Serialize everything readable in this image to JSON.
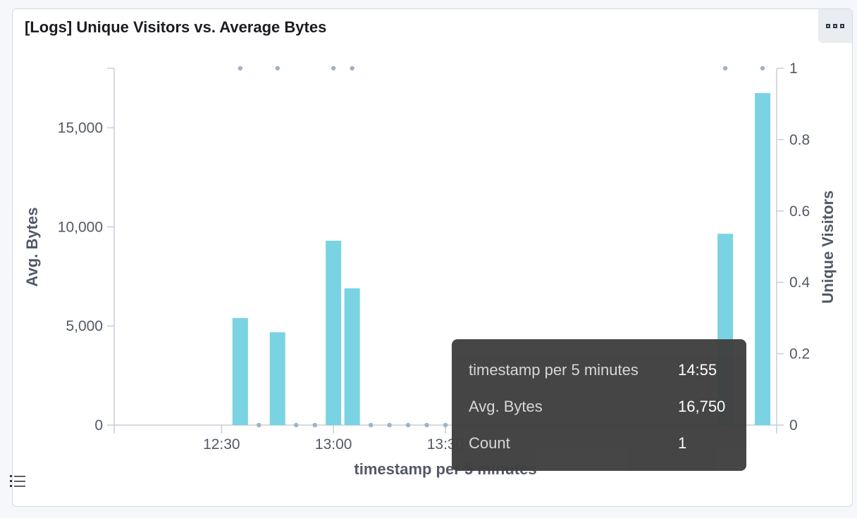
{
  "panel": {
    "title": "[Logs] Unique Visitors vs. Average Bytes",
    "menu_icon": "ellipsis-icon",
    "legend_icon": "list-icon"
  },
  "tooltip": {
    "rows": [
      {
        "key": "timestamp per 5 minutes",
        "value": "14:55"
      },
      {
        "key": "Avg. Bytes",
        "value": "16,750"
      },
      {
        "key": "Count",
        "value": "1"
      }
    ]
  },
  "colors": {
    "bar": "#79d3e2",
    "dot": "#9fb2c8",
    "axis": "#c9ced6",
    "text": "#535966"
  },
  "chart_data": {
    "type": "bar",
    "xlabel": "timestamp per 5 minutes",
    "ylabel": "Avg. Bytes",
    "y2label": "Unique Visitors",
    "x_ticks": [
      "12:30",
      "13:00",
      "13:30"
    ],
    "y_ticks": [
      "0",
      "5,000",
      "10,000",
      "15,000"
    ],
    "y2_ticks": [
      "0",
      "0.2",
      "0.4",
      "0.6",
      "0.8",
      "1"
    ],
    "ylim": [
      0,
      18000
    ],
    "y2lim": [
      0,
      1
    ],
    "series": [
      {
        "name": "Avg. Bytes",
        "type": "bar",
        "x": [
          "12:35",
          "12:45",
          "13:00",
          "13:05",
          "14:45",
          "14:55"
        ],
        "values": [
          5400,
          4680,
          9300,
          6900,
          9650,
          16750
        ]
      },
      {
        "name": "Unique Visitors",
        "type": "scatter",
        "x": [
          "12:35",
          "12:40",
          "12:45",
          "12:50",
          "12:55",
          "13:00",
          "13:05",
          "13:10",
          "13:15",
          "13:20",
          "13:25",
          "13:30",
          "14:45",
          "14:55"
        ],
        "values": [
          1,
          0,
          1,
          0,
          0,
          1,
          1,
          0,
          0,
          0,
          0,
          0,
          1,
          1
        ]
      }
    ]
  }
}
